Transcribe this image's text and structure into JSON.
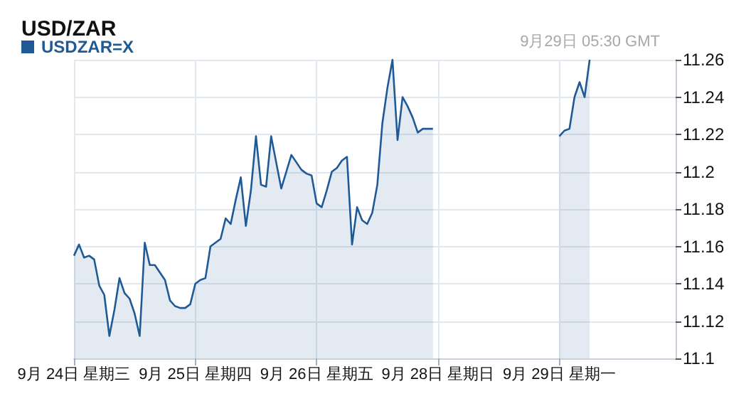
{
  "chart_data": {
    "type": "area",
    "title": "USD/ZAR",
    "annotations": [
      "9月29日 05:30 GMT"
    ],
    "categories": [
      "9月 24日 星期三",
      null,
      null,
      null,
      null,
      null,
      null,
      null,
      null,
      null,
      null,
      null,
      null,
      null,
      null,
      null,
      null,
      null,
      null,
      null,
      null,
      null,
      null,
      null,
      "9月 25日 星期四",
      null,
      null,
      null,
      null,
      null,
      null,
      null,
      null,
      null,
      null,
      null,
      null,
      null,
      null,
      null,
      null,
      null,
      null,
      null,
      null,
      null,
      null,
      null,
      "9月 26日 星期五",
      null,
      null,
      null,
      null,
      null,
      null,
      null,
      null,
      null,
      null,
      null,
      null,
      null,
      null,
      null,
      null,
      null,
      null,
      null,
      null,
      null,
      null,
      null,
      "9月 28日 星期日",
      null,
      null,
      null,
      null,
      null,
      null,
      null,
      null,
      null,
      null,
      null,
      null,
      null,
      null,
      null,
      null,
      null,
      null,
      null,
      null,
      null,
      null,
      null,
      "9月 29日 星期一",
      null,
      null,
      null,
      null,
      null,
      null,
      null,
      null,
      null,
      null,
      null,
      null,
      null,
      null,
      null,
      null,
      null,
      null,
      null,
      null,
      null,
      null,
      null
    ],
    "series": [
      {
        "name": "USDZAR=X",
        "color": "#1f5a96",
        "values": [
          11.155,
          11.161,
          11.154,
          11.155,
          11.153,
          11.139,
          11.134,
          11.112,
          11.126,
          11.143,
          11.135,
          11.132,
          11.124,
          11.112,
          11.162,
          11.15,
          11.15,
          11.146,
          11.142,
          11.131,
          11.128,
          11.127,
          11.127,
          11.129,
          11.14,
          11.142,
          11.143,
          11.16,
          11.162,
          11.164,
          11.175,
          11.172,
          11.185,
          11.197,
          11.171,
          11.19,
          11.219,
          11.193,
          11.192,
          11.219,
          11.205,
          11.191,
          11.2,
          11.209,
          11.205,
          11.201,
          11.199,
          11.198,
          11.183,
          11.181,
          11.19,
          11.2,
          11.202,
          11.206,
          11.208,
          11.161,
          11.181,
          11.174,
          11.172,
          11.178,
          11.193,
          11.226,
          11.245,
          11.26,
          11.217,
          11.24,
          11.235,
          11.229,
          11.221,
          11.223,
          11.223,
          11.223,
          null,
          null,
          null,
          null,
          null,
          null,
          null,
          null,
          null,
          null,
          null,
          null,
          null,
          null,
          null,
          null,
          null,
          null,
          null,
          null,
          null,
          null,
          null,
          null,
          11.219,
          11.222,
          11.223,
          11.24,
          11.248,
          11.24,
          11.26,
          null,
          null,
          null,
          null,
          null,
          null,
          null,
          null,
          null,
          null,
          null,
          null,
          null,
          null,
          null,
          null,
          null
        ]
      }
    ],
    "ylim": [
      11.1,
      11.26
    ],
    "yticks": [
      11.1,
      11.12,
      11.14,
      11.16,
      11.18,
      11.2,
      11.22,
      11.24,
      11.26
    ],
    "grid": true,
    "legend": "top left",
    "marker": "none",
    "line_style": "solid"
  }
}
